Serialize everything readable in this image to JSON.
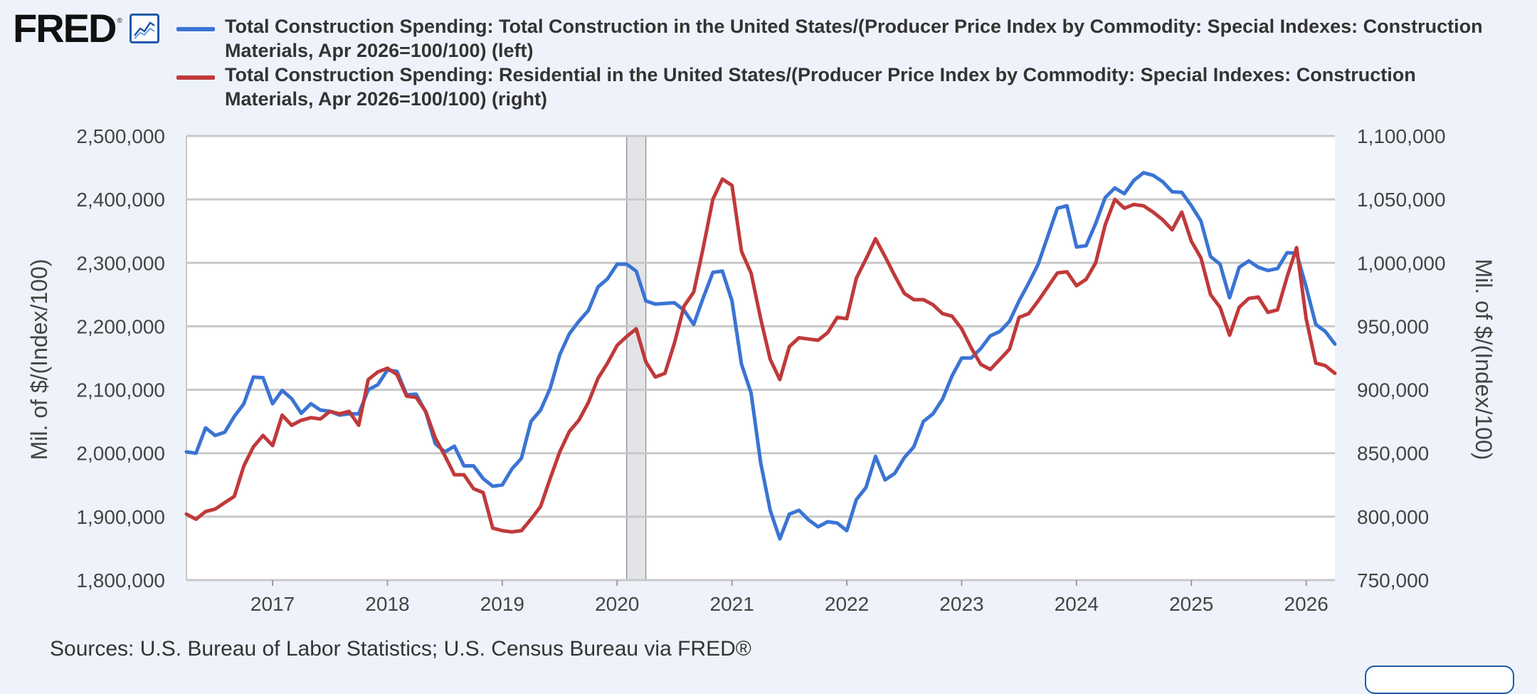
{
  "logo": {
    "text": "FRED",
    "mark": "®",
    "icon": "chart-line-icon"
  },
  "legend": [
    {
      "label": "Total Construction Spending: Total Construction in the United States/(Producer Price Index by Commodity: Special Indexes: Construction Materials, Apr 2026=100/100) (left)",
      "color": "#3a74d4"
    },
    {
      "label": "Total Construction Spending: Residential in the United States/(Producer Price Index by Commodity: Special Indexes: Construction Materials, Apr 2026=100/100) (right)",
      "color": "#c0393a"
    }
  ],
  "source": "Sources: U.S. Bureau of Labor Statistics; U.S. Census Bureau via FRED®",
  "chart_data": {
    "type": "line",
    "ylabel_left": "Mil. of $/(Index/100)",
    "ylabel_right": "Mil. of $/(Index/100)",
    "x_ticks": [
      "2017",
      "2018",
      "2019",
      "2020",
      "2021",
      "2022",
      "2023",
      "2024",
      "2025",
      "2026"
    ],
    "y_left_ticks": [
      "1,800,000",
      "1,900,000",
      "2,000,000",
      "2,100,000",
      "2,200,000",
      "2,300,000",
      "2,400,000",
      "2,500,000"
    ],
    "y_right_ticks": [
      "750,000",
      "800,000",
      "850,000",
      "900,000",
      "950,000",
      "1,000,000",
      "1,050,000",
      "1,100,000"
    ],
    "ylim_left": [
      1800000,
      2500000
    ],
    "ylim_right": [
      750000,
      1100000
    ],
    "xlim": [
      "2016-04",
      "2026-04"
    ],
    "grid": true,
    "recession_shading": [
      "2020-02",
      "2020-04"
    ],
    "series": [
      {
        "name": "Total Construction Spending: Total Construction in the United States/(Producer Price Index by Commodity: Special Indexes: Construction Materials, Apr 2026=100/100) (left)",
        "axis": "left",
        "color": "#3a74d4",
        "points": [
          [
            "2016-04",
            2002000
          ],
          [
            "2016-05",
            2000000
          ],
          [
            "2016-06",
            2040000
          ],
          [
            "2016-07",
            2028000
          ],
          [
            "2016-08",
            2033000
          ],
          [
            "2016-09",
            2058000
          ],
          [
            "2016-10",
            2078000
          ],
          [
            "2016-11",
            2120000
          ],
          [
            "2016-12",
            2119000
          ],
          [
            "2017-01",
            2078000
          ],
          [
            "2017-02",
            2099000
          ],
          [
            "2017-03",
            2086000
          ],
          [
            "2017-04",
            2063000
          ],
          [
            "2017-05",
            2078000
          ],
          [
            "2017-06",
            2068000
          ],
          [
            "2017-07",
            2066000
          ],
          [
            "2017-08",
            2060000
          ],
          [
            "2017-09",
            2062000
          ],
          [
            "2017-10",
            2062000
          ],
          [
            "2017-11",
            2100000
          ],
          [
            "2017-12",
            2108000
          ],
          [
            "2018-01",
            2131000
          ],
          [
            "2018-02",
            2129000
          ],
          [
            "2018-03",
            2092000
          ],
          [
            "2018-04",
            2093000
          ],
          [
            "2018-05",
            2065000
          ],
          [
            "2018-06",
            2015000
          ],
          [
            "2018-07",
            2002000
          ],
          [
            "2018-08",
            2011000
          ],
          [
            "2018-09",
            1980000
          ],
          [
            "2018-10",
            1980000
          ],
          [
            "2018-11",
            1960000
          ],
          [
            "2018-12",
            1948000
          ],
          [
            "2019-01",
            1950000
          ],
          [
            "2019-02",
            1975000
          ],
          [
            "2019-03",
            1992000
          ],
          [
            "2019-04",
            2050000
          ],
          [
            "2019-05",
            2068000
          ],
          [
            "2019-06",
            2102000
          ],
          [
            "2019-07",
            2155000
          ],
          [
            "2019-08",
            2188000
          ],
          [
            "2019-09",
            2208000
          ],
          [
            "2019-10",
            2225000
          ],
          [
            "2019-11",
            2262000
          ],
          [
            "2019-12",
            2275000
          ],
          [
            "2020-01",
            2298000
          ],
          [
            "2020-02",
            2298000
          ],
          [
            "2020-03",
            2287000
          ],
          [
            "2020-04",
            2240000
          ],
          [
            "2020-05",
            2235000
          ],
          [
            "2020-06",
            2236000
          ],
          [
            "2020-07",
            2237000
          ],
          [
            "2020-08",
            2225000
          ],
          [
            "2020-09",
            2203000
          ],
          [
            "2020-10",
            2245000
          ],
          [
            "2020-11",
            2285000
          ],
          [
            "2020-12",
            2287000
          ],
          [
            "2021-01",
            2240000
          ],
          [
            "2021-02",
            2140000
          ],
          [
            "2021-03",
            2095000
          ],
          [
            "2021-04",
            1985000
          ],
          [
            "2021-05",
            1910000
          ],
          [
            "2021-06",
            1865000
          ],
          [
            "2021-07",
            1904000
          ],
          [
            "2021-08",
            1910000
          ],
          [
            "2021-09",
            1895000
          ],
          [
            "2021-10",
            1884000
          ],
          [
            "2021-11",
            1892000
          ],
          [
            "2021-12",
            1890000
          ],
          [
            "2022-01",
            1878000
          ],
          [
            "2022-02",
            1927000
          ],
          [
            "2022-03",
            1946000
          ],
          [
            "2022-04",
            1995000
          ],
          [
            "2022-05",
            1958000
          ],
          [
            "2022-06",
            1968000
          ],
          [
            "2022-07",
            1993000
          ],
          [
            "2022-08",
            2010000
          ],
          [
            "2022-09",
            2050000
          ],
          [
            "2022-10",
            2062000
          ],
          [
            "2022-11",
            2085000
          ],
          [
            "2022-12",
            2122000
          ],
          [
            "2023-01",
            2150000
          ],
          [
            "2023-02",
            2150000
          ],
          [
            "2023-03",
            2165000
          ],
          [
            "2023-04",
            2185000
          ],
          [
            "2023-05",
            2192000
          ],
          [
            "2023-06",
            2208000
          ],
          [
            "2023-07",
            2240000
          ],
          [
            "2023-08",
            2268000
          ],
          [
            "2023-09",
            2298000
          ],
          [
            "2023-10",
            2342000
          ],
          [
            "2023-11",
            2386000
          ],
          [
            "2023-12",
            2390000
          ],
          [
            "2024-01",
            2325000
          ],
          [
            "2024-02",
            2327000
          ],
          [
            "2024-03",
            2362000
          ],
          [
            "2024-04",
            2403000
          ],
          [
            "2024-05",
            2418000
          ],
          [
            "2024-06",
            2409000
          ],
          [
            "2024-07",
            2430000
          ],
          [
            "2024-08",
            2442000
          ],
          [
            "2024-09",
            2438000
          ],
          [
            "2024-10",
            2428000
          ],
          [
            "2024-11",
            2412000
          ],
          [
            "2024-12",
            2411000
          ],
          [
            "2025-01",
            2390000
          ],
          [
            "2025-02",
            2366000
          ],
          [
            "2025-03",
            2310000
          ],
          [
            "2025-04",
            2298000
          ],
          [
            "2025-05",
            2245000
          ],
          [
            "2025-06",
            2293000
          ],
          [
            "2025-07",
            2303000
          ],
          [
            "2025-08",
            2293000
          ],
          [
            "2025-09",
            2288000
          ],
          [
            "2025-10",
            2291000
          ],
          [
            "2025-11",
            2316000
          ],
          [
            "2025-12",
            2315000
          ],
          [
            "2026-01",
            2262000
          ],
          [
            "2026-02",
            2203000
          ],
          [
            "2026-03",
            2192000
          ],
          [
            "2026-04",
            2172000
          ]
        ]
      },
      {
        "name": "Total Construction Spending: Residential in the United States/(Producer Price Index by Commodity: Special Indexes: Construction Materials, Apr 2026=100/100) (right)",
        "axis": "right",
        "color": "#c0393a",
        "points": [
          [
            "2016-04",
            802000
          ],
          [
            "2016-05",
            798000
          ],
          [
            "2016-06",
            804000
          ],
          [
            "2016-07",
            806000
          ],
          [
            "2016-08",
            811000
          ],
          [
            "2016-09",
            816000
          ],
          [
            "2016-10",
            840000
          ],
          [
            "2016-11",
            855000
          ],
          [
            "2016-12",
            864000
          ],
          [
            "2017-01",
            856000
          ],
          [
            "2017-02",
            880000
          ],
          [
            "2017-03",
            872000
          ],
          [
            "2017-04",
            876000
          ],
          [
            "2017-05",
            878000
          ],
          [
            "2017-06",
            877000
          ],
          [
            "2017-07",
            883000
          ],
          [
            "2017-08",
            881000
          ],
          [
            "2017-09",
            883000
          ],
          [
            "2017-10",
            872000
          ],
          [
            "2017-11",
            908000
          ],
          [
            "2017-12",
            914000
          ],
          [
            "2018-01",
            917000
          ],
          [
            "2018-02",
            912000
          ],
          [
            "2018-03",
            895000
          ],
          [
            "2018-04",
            894000
          ],
          [
            "2018-05",
            883000
          ],
          [
            "2018-06",
            862000
          ],
          [
            "2018-07",
            848000
          ],
          [
            "2018-08",
            833000
          ],
          [
            "2018-09",
            833000
          ],
          [
            "2018-10",
            822000
          ],
          [
            "2018-11",
            819000
          ],
          [
            "2018-12",
            791000
          ],
          [
            "2019-01",
            789000
          ],
          [
            "2019-02",
            788000
          ],
          [
            "2019-03",
            789000
          ],
          [
            "2019-04",
            798000
          ],
          [
            "2019-05",
            808000
          ],
          [
            "2019-06",
            830000
          ],
          [
            "2019-07",
            851000
          ],
          [
            "2019-08",
            867000
          ],
          [
            "2019-09",
            876000
          ],
          [
            "2019-10",
            890000
          ],
          [
            "2019-11",
            909000
          ],
          [
            "2019-12",
            921000
          ],
          [
            "2020-01",
            935000
          ],
          [
            "2020-02",
            942000
          ],
          [
            "2020-03",
            948000
          ],
          [
            "2020-04",
            922000
          ],
          [
            "2020-05",
            910000
          ],
          [
            "2020-06",
            913000
          ],
          [
            "2020-07",
            937000
          ],
          [
            "2020-08",
            966000
          ],
          [
            "2020-09",
            977000
          ],
          [
            "2020-10",
            1012000
          ],
          [
            "2020-11",
            1050000
          ],
          [
            "2020-12",
            1066000
          ],
          [
            "2021-01",
            1061000
          ],
          [
            "2021-02",
            1009000
          ],
          [
            "2021-03",
            992000
          ],
          [
            "2021-04",
            956000
          ],
          [
            "2021-05",
            924000
          ],
          [
            "2021-06",
            908000
          ],
          [
            "2021-07",
            934000
          ],
          [
            "2021-08",
            941000
          ],
          [
            "2021-09",
            940000
          ],
          [
            "2021-10",
            939000
          ],
          [
            "2021-11",
            945000
          ],
          [
            "2021-12",
            957000
          ],
          [
            "2022-01",
            956000
          ],
          [
            "2022-02",
            988000
          ],
          [
            "2022-03",
            1003000
          ],
          [
            "2022-04",
            1019000
          ],
          [
            "2022-05",
            1005000
          ],
          [
            "2022-06",
            990000
          ],
          [
            "2022-07",
            976000
          ],
          [
            "2022-08",
            971000
          ],
          [
            "2022-09",
            971000
          ],
          [
            "2022-10",
            967000
          ],
          [
            "2022-11",
            960000
          ],
          [
            "2022-12",
            958000
          ],
          [
            "2023-01",
            948000
          ],
          [
            "2023-02",
            933000
          ],
          [
            "2023-03",
            920000
          ],
          [
            "2023-04",
            916000
          ],
          [
            "2023-05",
            924000
          ],
          [
            "2023-06",
            932000
          ],
          [
            "2023-07",
            957000
          ],
          [
            "2023-08",
            960000
          ],
          [
            "2023-09",
            970000
          ],
          [
            "2023-10",
            981000
          ],
          [
            "2023-11",
            992000
          ],
          [
            "2023-12",
            993000
          ],
          [
            "2024-01",
            982000
          ],
          [
            "2024-02",
            987000
          ],
          [
            "2024-03",
            1000000
          ],
          [
            "2024-04",
            1030000
          ],
          [
            "2024-05",
            1050000
          ],
          [
            "2024-06",
            1043000
          ],
          [
            "2024-07",
            1046000
          ],
          [
            "2024-08",
            1045000
          ],
          [
            "2024-09",
            1040000
          ],
          [
            "2024-10",
            1034000
          ],
          [
            "2024-11",
            1026000
          ],
          [
            "2024-12",
            1040000
          ],
          [
            "2025-01",
            1017000
          ],
          [
            "2025-02",
            1004000
          ],
          [
            "2025-03",
            975000
          ],
          [
            "2025-04",
            965000
          ],
          [
            "2025-05",
            943000
          ],
          [
            "2025-06",
            965000
          ],
          [
            "2025-07",
            972000
          ],
          [
            "2025-08",
            973000
          ],
          [
            "2025-09",
            961000
          ],
          [
            "2025-10",
            963000
          ],
          [
            "2025-11",
            989000
          ],
          [
            "2025-12",
            1012000
          ],
          [
            "2026-01",
            956000
          ],
          [
            "2026-02",
            921000
          ],
          [
            "2026-03",
            919000
          ],
          [
            "2026-04",
            913000
          ]
        ]
      }
    ]
  }
}
